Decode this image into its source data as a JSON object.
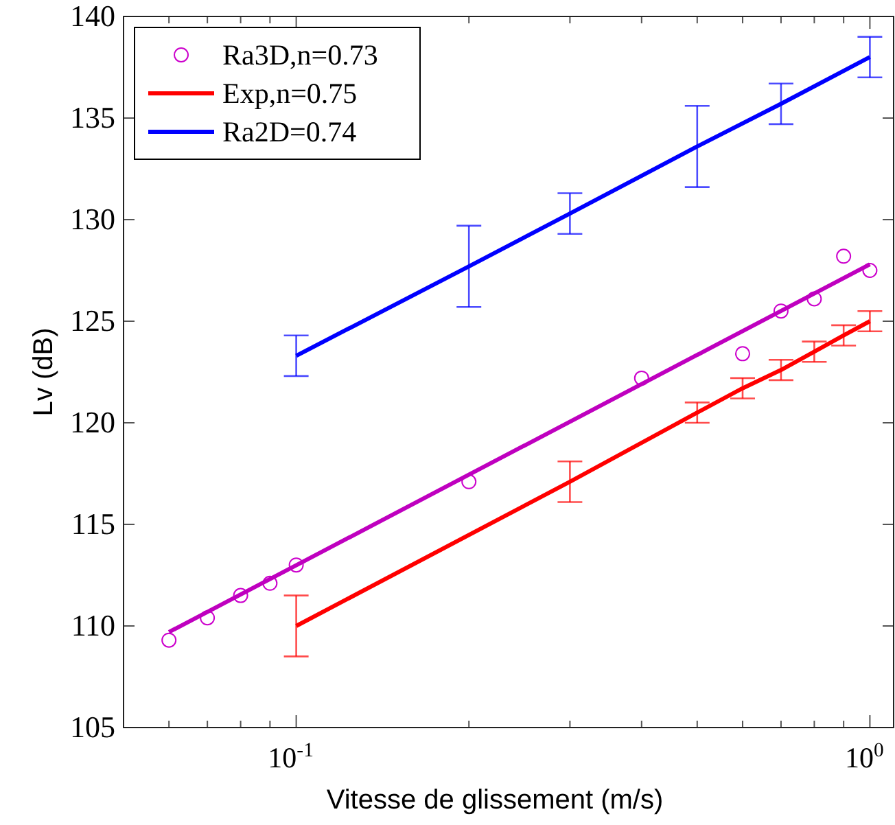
{
  "chart_data": {
    "type": "line",
    "xlabel": "Vitesse de glissement (m/s)",
    "ylabel": "Lv (dB)",
    "log": "x",
    "legend": "top left",
    "grid": false,
    "xlim": [
      0.05,
      1.1
    ],
    "ylim": [
      105,
      140
    ],
    "xticks": [
      {
        "value": 0.06,
        "label": null
      },
      {
        "value": 0.07,
        "label": null
      },
      {
        "value": 0.08,
        "label": null
      },
      {
        "value": 0.09,
        "label": null
      },
      {
        "value": 0.1,
        "label": "10$^{-1}$"
      },
      {
        "value": 0.2,
        "label": null
      },
      {
        "value": 0.3,
        "label": null
      },
      {
        "value": 0.4,
        "label": null
      },
      {
        "value": 0.5,
        "label": null
      },
      {
        "value": 0.6,
        "label": null
      },
      {
        "value": 0.7,
        "label": null
      },
      {
        "value": 0.8,
        "label": null
      },
      {
        "value": 0.9,
        "label": null
      },
      {
        "value": 1,
        "label": "10$^{0}$"
      }
    ],
    "yticks": [
      105,
      110,
      115,
      120,
      125,
      130,
      135,
      140
    ],
    "series": [
      {
        "name": "Ra3D,n=0.73",
        "type": "scatter",
        "color": "#cc00cc",
        "x": [
          0.06,
          0.07,
          0.08,
          0.09,
          0.1,
          0.2,
          0.4,
          0.6,
          0.7,
          0.8,
          0.9,
          1.0
        ],
        "values": [
          109.3,
          110.4,
          111.5,
          112.1,
          113.0,
          117.1,
          122.2,
          123.4,
          125.5,
          126.1,
          128.2,
          127.5
        ]
      },
      {
        "color": "#bf00bf",
        "x": [
          0.06,
          1.0
        ],
        "values": [
          109.7,
          127.8
        ]
      },
      {
        "name": "Exp,n=0.75",
        "color": "#ff0000",
        "x": [
          0.1,
          0.3,
          0.5,
          0.6,
          0.7,
          0.8,
          0.9,
          1.0
        ],
        "values": [
          110.0,
          117.1,
          120.5,
          121.7,
          122.6,
          123.5,
          124.3,
          125.0
        ],
        "errors": [
          1.5,
          1.0,
          0.5,
          0.5,
          0.5,
          0.5,
          0.5,
          0.5
        ]
      },
      {
        "name": "Ra2D=0.74",
        "color": "#0000ff",
        "x": [
          0.1,
          0.2,
          0.3,
          0.5,
          0.7,
          1.0
        ],
        "values": [
          123.3,
          127.7,
          130.3,
          133.6,
          135.7,
          138.0
        ],
        "errors": [
          1,
          2,
          1,
          2,
          1,
          1
        ]
      }
    ]
  }
}
